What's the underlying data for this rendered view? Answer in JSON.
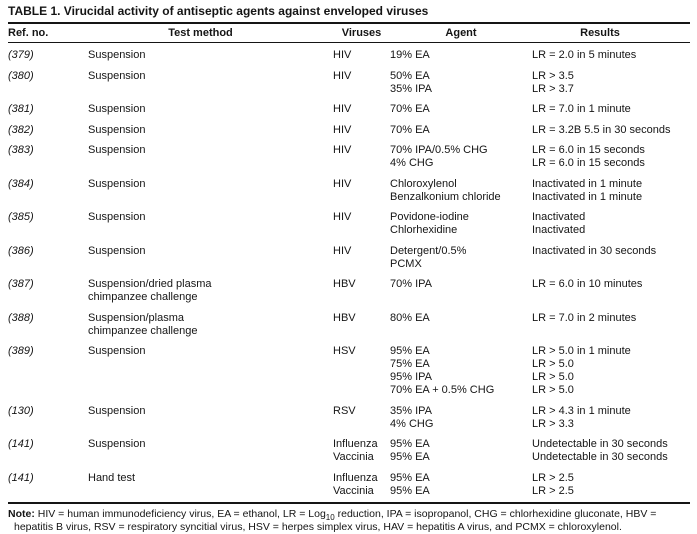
{
  "title": "TABLE 1. Virucidal activity of antiseptic agents against enveloped viruses",
  "columns": [
    "Ref. no.",
    "Test method",
    "Viruses",
    "Agent",
    "Results"
  ],
  "rows": [
    {
      "ref": "(379)",
      "method": [
        "Suspension"
      ],
      "viruses": [
        "HIV"
      ],
      "agents": [
        "19% EA"
      ],
      "results": [
        "LR = 2.0 in 5 minutes"
      ]
    },
    {
      "ref": "(380)",
      "method": [
        "Suspension"
      ],
      "viruses": [
        "HIV"
      ],
      "agents": [
        "50% EA",
        "35% IPA"
      ],
      "results": [
        "LR > 3.5",
        "LR > 3.7"
      ]
    },
    {
      "ref": "(381)",
      "method": [
        "Suspension"
      ],
      "viruses": [
        "HIV"
      ],
      "agents": [
        "70% EA"
      ],
      "results": [
        "LR = 7.0 in 1 minute"
      ]
    },
    {
      "ref": "(382)",
      "method": [
        "Suspension"
      ],
      "viruses": [
        "HIV"
      ],
      "agents": [
        "70% EA"
      ],
      "results": [
        "LR = 3.2B 5.5 in 30 seconds"
      ]
    },
    {
      "ref": "(383)",
      "method": [
        "Suspension"
      ],
      "viruses": [
        "HIV"
      ],
      "agents": [
        "70% IPA/0.5% CHG",
        "4% CHG"
      ],
      "results": [
        "LR = 6.0 in 15 seconds",
        "LR = 6.0 in 15 seconds"
      ]
    },
    {
      "ref": "(384)",
      "method": [
        "Suspension"
      ],
      "viruses": [
        "HIV"
      ],
      "agents": [
        "Chloroxylenol",
        "Benzalkonium chloride"
      ],
      "results": [
        "Inactivated in 1 minute",
        "Inactivated in 1 minute"
      ]
    },
    {
      "ref": "(385)",
      "method": [
        "Suspension"
      ],
      "viruses": [
        "HIV"
      ],
      "agents": [
        "Povidone-iodine",
        "Chlorhexidine"
      ],
      "results": [
        "Inactivated",
        "Inactivated"
      ]
    },
    {
      "ref": "(386)",
      "method": [
        "Suspension"
      ],
      "viruses": [
        "HIV"
      ],
      "agents": [
        "Detergent/0.5%",
        "PCMX"
      ],
      "results": [
        "Inactivated in 30 seconds"
      ]
    },
    {
      "ref": "(387)",
      "method": [
        "Suspension/dried plasma",
        "chimpanzee challenge"
      ],
      "viruses": [
        "HBV"
      ],
      "agents": [
        "70% IPA"
      ],
      "results": [
        "LR = 6.0 in 10 minutes"
      ]
    },
    {
      "ref": "(388)",
      "method": [
        "Suspension/plasma",
        "chimpanzee challenge"
      ],
      "viruses": [
        "HBV"
      ],
      "agents": [
        "80% EA"
      ],
      "results": [
        "LR = 7.0 in 2 minutes"
      ]
    },
    {
      "ref": "(389)",
      "method": [
        "Suspension"
      ],
      "viruses": [
        "HSV"
      ],
      "agents": [
        "95% EA",
        "75% EA",
        "95% IPA",
        "70% EA + 0.5% CHG"
      ],
      "results": [
        "LR > 5.0 in 1 minute",
        "LR > 5.0",
        "LR > 5.0",
        "LR > 5.0"
      ]
    },
    {
      "ref": "(130)",
      "method": [
        "Suspension"
      ],
      "viruses": [
        "RSV"
      ],
      "agents": [
        "35% IPA",
        "4% CHG"
      ],
      "results": [
        "LR > 4.3 in 1 minute",
        "LR > 3.3"
      ]
    },
    {
      "ref": "(141)",
      "method": [
        "Suspension"
      ],
      "viruses": [
        "Influenza",
        "Vaccinia"
      ],
      "agents": [
        "95% EA",
        "95% EA"
      ],
      "results": [
        "Undetectable in 30 seconds",
        "Undetectable in 30 seconds"
      ]
    },
    {
      "ref": "(141)",
      "method": [
        "Hand test"
      ],
      "viruses": [
        "Influenza",
        "Vaccinia"
      ],
      "agents": [
        "95% EA",
        "95% EA"
      ],
      "results": [
        "LR > 2.5",
        "LR > 2.5"
      ]
    }
  ],
  "note": {
    "label": "Note:",
    "pre_sub": " HIV = human immunodeficiency virus, EA = ethanol, LR = Log",
    "sub": "10",
    "post_sub": " reduction, IPA = isopropanol, CHG = chlorhexidine gluconate, HBV = hepatitis B virus, RSV = respiratory syncitial virus, HSV = herpes simplex virus, HAV = hepatitis A virus, and PCMX = chloroxylenol."
  }
}
